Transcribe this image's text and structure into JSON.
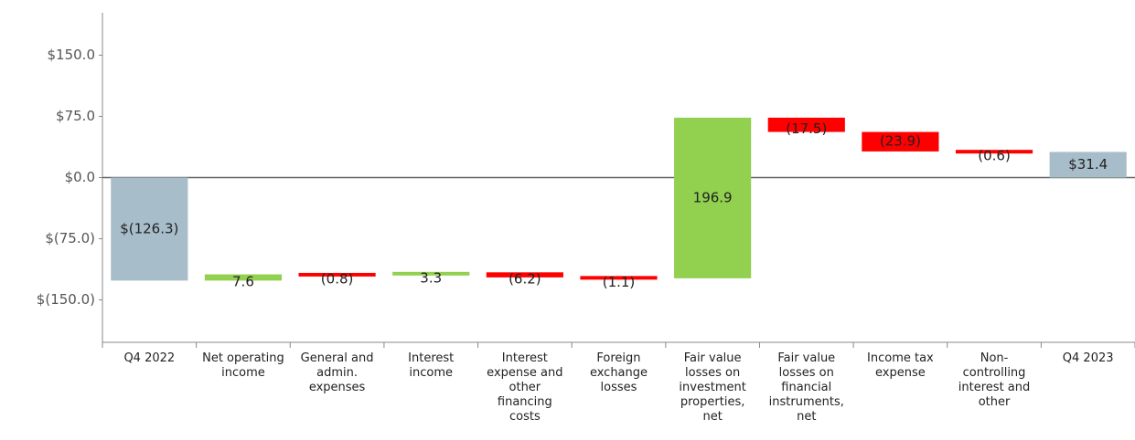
{
  "chart_data": {
    "type": "waterfall",
    "categories": [
      "Q4 2022",
      "Net operating income",
      "General and admin. expenses",
      "Interest income",
      "Interest expense and other financing costs",
      "Foreign exchange losses",
      "Fair value losses on investment properties, net",
      "Fair value losses on financial instruments, net",
      "Income tax expense",
      "Non-controlling interest and other",
      "Q4 2023"
    ],
    "values": [
      -126.3,
      7.6,
      -0.8,
      3.3,
      -6.2,
      -1.1,
      196.9,
      -17.5,
      -23.9,
      -0.6,
      31.4
    ],
    "value_labels": [
      "$(126.3)",
      "7.6",
      "(0.8)",
      "3.3",
      "(6.2)",
      "(1.1)",
      "196.9",
      "(17.5)",
      "(23.9)",
      "(0.6)",
      "$31.4"
    ],
    "total_color": "#a8bdca",
    "increase_color": "#92d050",
    "decrease_color": "#ff0000",
    "ylim": [
      -202,
      202
    ],
    "yticks": [
      {
        "value": 150,
        "label": "$150.0"
      },
      {
        "value": 75,
        "label": "$75.0"
      },
      {
        "value": 0,
        "label": "$0.0"
      },
      {
        "value": -75,
        "label": "$(75.0)"
      },
      {
        "value": -150,
        "label": "$(150.0)"
      }
    ]
  }
}
